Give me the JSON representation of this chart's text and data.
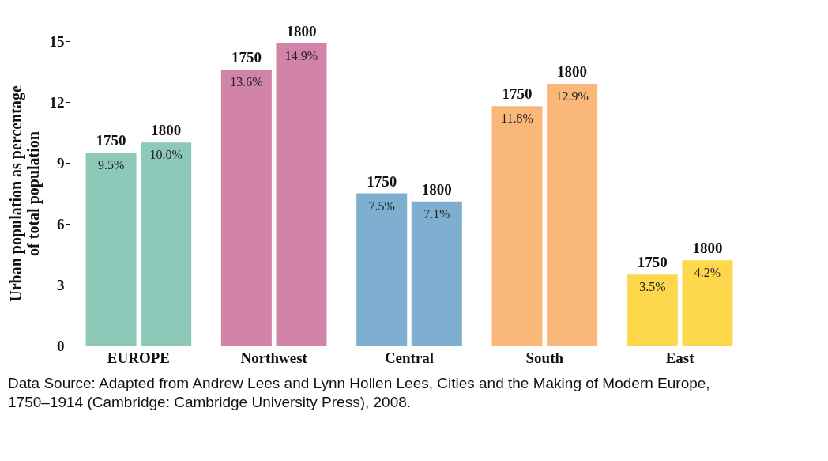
{
  "chart_data": {
    "type": "bar",
    "categories": [
      "EUROPE",
      "Northwest",
      "Central",
      "South",
      "East"
    ],
    "ylabel": "Urban population as percentage of total population",
    "ylim": [
      0,
      15
    ],
    "yticks": [
      0,
      3,
      6,
      9,
      12,
      15
    ],
    "grid": false,
    "series": [
      {
        "name": "1750",
        "values": [
          9.5,
          13.6,
          7.5,
          11.8,
          3.5
        ],
        "colors": [
          "#8dc8b8",
          "#d184a8",
          "#7eaed0",
          "#f9b87a",
          "#fdd84c"
        ],
        "value_labels": [
          "9.5%",
          "13.6%",
          "7.5%",
          "11.8%",
          "3.5%"
        ]
      },
      {
        "name": "1800",
        "values": [
          10.0,
          14.9,
          7.1,
          12.9,
          4.2
        ],
        "colors": [
          "#8dc8b8",
          "#d184a8",
          "#7eaed0",
          "#f9b87a",
          "#fdd84c"
        ],
        "value_labels": [
          "10.0%",
          "14.9%",
          "7.1%",
          "12.9%",
          "4.2%"
        ]
      }
    ],
    "annotations": [
      "Data Source: Adapted from Andrew Lees and Lynn Hollen Lees, Cities and the Making of Modern Europe, 1750–1914 (Cambridge: Cambridge University Press), 2008."
    ]
  }
}
